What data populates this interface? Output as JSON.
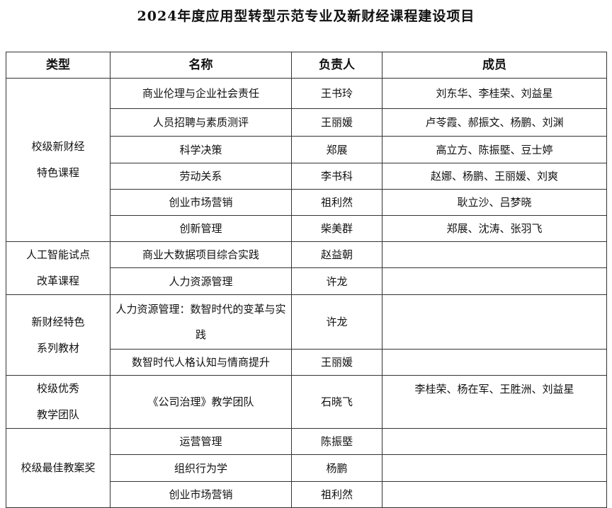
{
  "title": "2024年度应用型转型示范专业及新财经课程建设项目",
  "headers": [
    "类型",
    "名称",
    "负责人",
    "成员"
  ],
  "groups": [
    {
      "type": [
        "校级新财经",
        "特色课程"
      ],
      "rows": [
        {
          "name": "商业伦理与企业社会责任",
          "lead": "王书玲",
          "members": "刘东华、李桂荣、刘益星"
        },
        {
          "name": "人员招聘与素质测评",
          "lead": "王丽媛",
          "members": "卢苓霞、郝振文、杨鹏、刘渊"
        },
        {
          "name": "科学决策",
          "lead": "郑展",
          "members": "高立方、陈振塈、豆士婷"
        },
        {
          "name": "劳动关系",
          "lead": "李书科",
          "members": "赵娜、杨鹏、王丽媛、刘爽"
        },
        {
          "name": "创业市场营销",
          "lead": "祖利然",
          "members": "耿立沙、吕梦晓"
        },
        {
          "name": "创新管理",
          "lead": "柴美群",
          "members": "郑展、沈涛、张羽飞"
        }
      ]
    },
    {
      "type": [
        "人工智能试点",
        "改革课程"
      ],
      "rows": [
        {
          "name": "商业大数据项目综合实践",
          "lead": "赵益朝",
          "members": ""
        },
        {
          "name": "人力资源管理",
          "lead": "许龙",
          "members": ""
        }
      ]
    },
    {
      "type": [
        "新财经特色",
        "系列教材"
      ],
      "rows": [
        {
          "name": "人力资源管理：数智时代的变革与实践",
          "lead": "许龙",
          "members": ""
        },
        {
          "name": "数智时代人格认知与情商提升",
          "lead": "王丽媛",
          "members": ""
        }
      ]
    },
    {
      "type": [
        "校级优秀",
        "教学团队"
      ],
      "rows": [
        {
          "name": "《公司治理》教学团队",
          "lead": "石晓飞",
          "members": "李桂荣、杨在军、王胜洲、刘益星"
        }
      ]
    },
    {
      "type": [
        "校级最佳教案奖"
      ],
      "rows": [
        {
          "name": "运营管理",
          "lead": "陈振塈",
          "members": ""
        },
        {
          "name": "组织行为学",
          "lead": "杨鹏",
          "members": ""
        },
        {
          "name": "创业市场营销",
          "lead": "祖利然",
          "members": ""
        }
      ]
    }
  ]
}
